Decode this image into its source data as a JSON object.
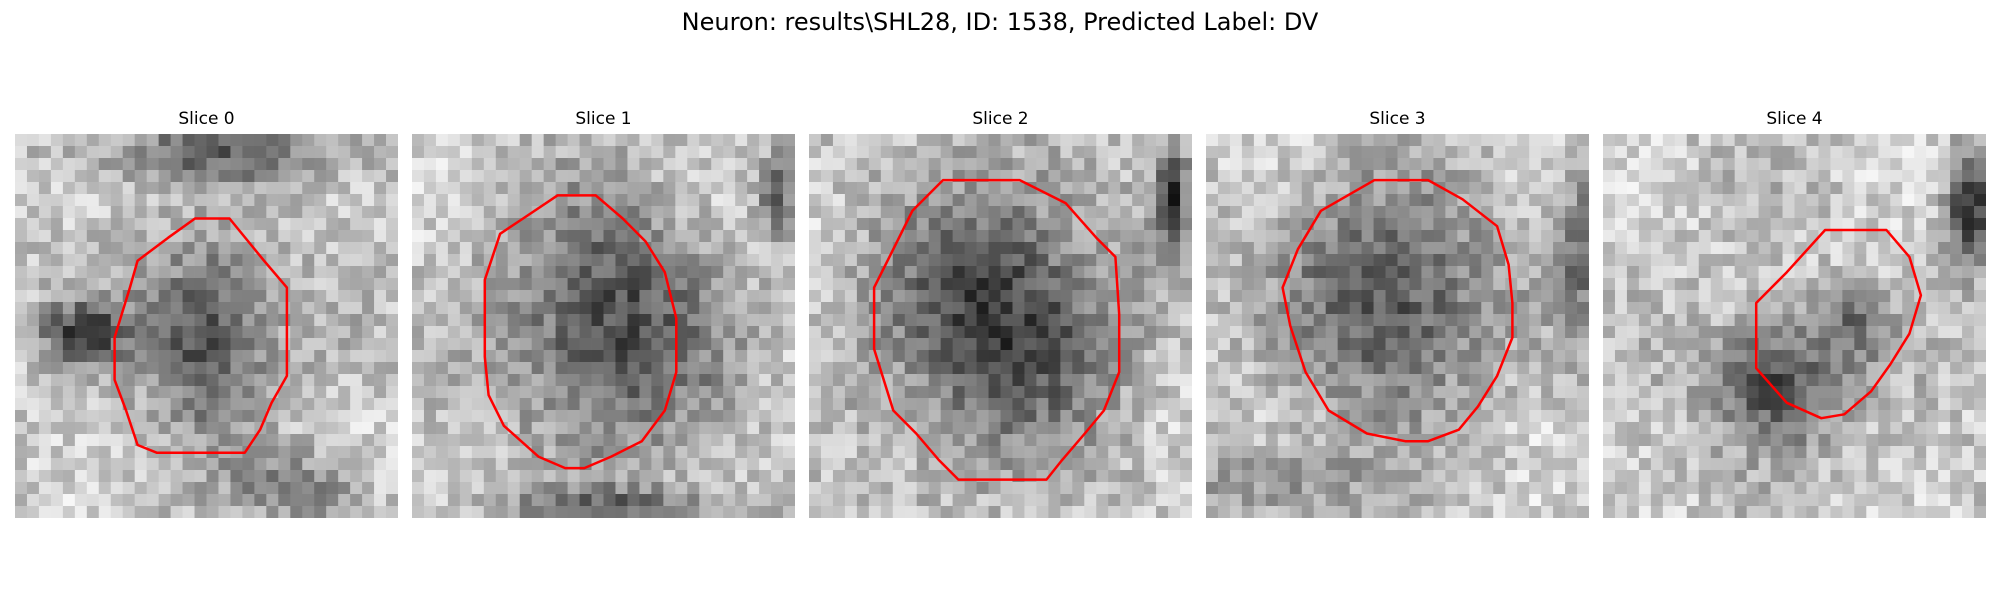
{
  "figure": {
    "title": "Neuron: results\\SHL28, ID: 1538, Predicted Label: DV"
  },
  "colors": {
    "contour": "#ff0000",
    "background": "#ffffff"
  },
  "panels": [
    {
      "title": "Slice 0"
    },
    {
      "title": "Slice 1"
    },
    {
      "title": "Slice 2"
    },
    {
      "title": "Slice 3"
    },
    {
      "title": "Slice 4"
    }
  ]
}
